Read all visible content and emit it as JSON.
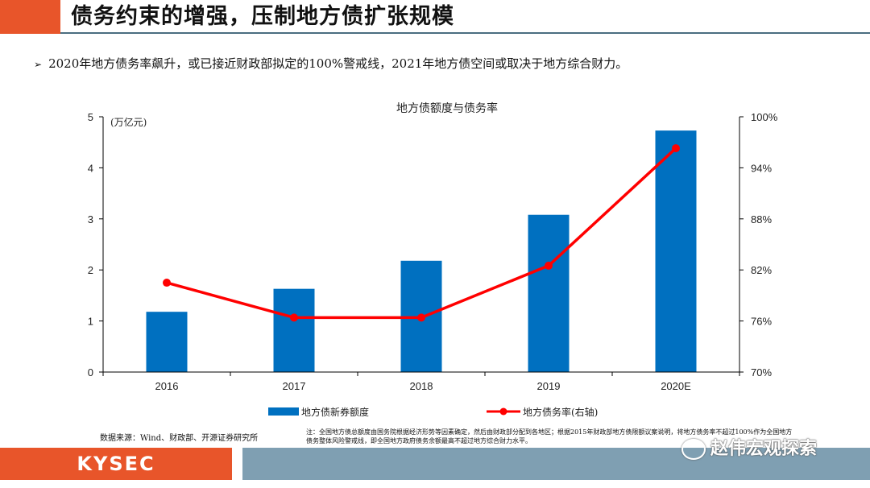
{
  "page": {
    "title": "债务约束的增强，压制地方债扩张规模",
    "bullet": "2020年地方债务率飙升，或已接近财政部拟定的100%警戒线，2021年地方债空间或取决于地方综合财力。",
    "source": "数据来源：Wind、财政部、开源证券研究所",
    "note": "注：全国地方债总额度由国务院根据经济形势等因素确定，然后由财政部分配到各地区；根据2015年财政部地方债限额议案说明，将地方债务率不超过100%作为全国地方债务整体风险警戒线，即全国地方政府债务余额最高不超过地方综合财力水平。",
    "logo": "KYSEC",
    "watermark": "赵伟宏观探索",
    "colors": {
      "accent": "#e8552a",
      "bar": "#0070c0",
      "line": "#ff0000",
      "footer": "#7f9fb2"
    }
  },
  "chart_data": {
    "type": "bar",
    "title": "地方债额度与债务率",
    "categories": [
      "2016",
      "2017",
      "2018",
      "2019",
      "2020E"
    ],
    "series": [
      {
        "name": "地方债新券额度",
        "type": "bar",
        "axis": "left",
        "values": [
          1.18,
          1.63,
          2.18,
          3.08,
          4.73
        ]
      },
      {
        "name": "地方债务率(右轴)",
        "type": "line",
        "axis": "right",
        "values": [
          80.5,
          76.4,
          76.4,
          82.5,
          96.3
        ]
      }
    ],
    "left_unit": "(万亿元)",
    "ylim_left": [
      0,
      5
    ],
    "ylim_right": [
      70,
      100
    ],
    "yticks_left": [
      "0",
      "1",
      "2",
      "3",
      "4",
      "5"
    ],
    "yticks_right": [
      "70%",
      "76%",
      "82%",
      "88%",
      "94%",
      "100%"
    ]
  }
}
